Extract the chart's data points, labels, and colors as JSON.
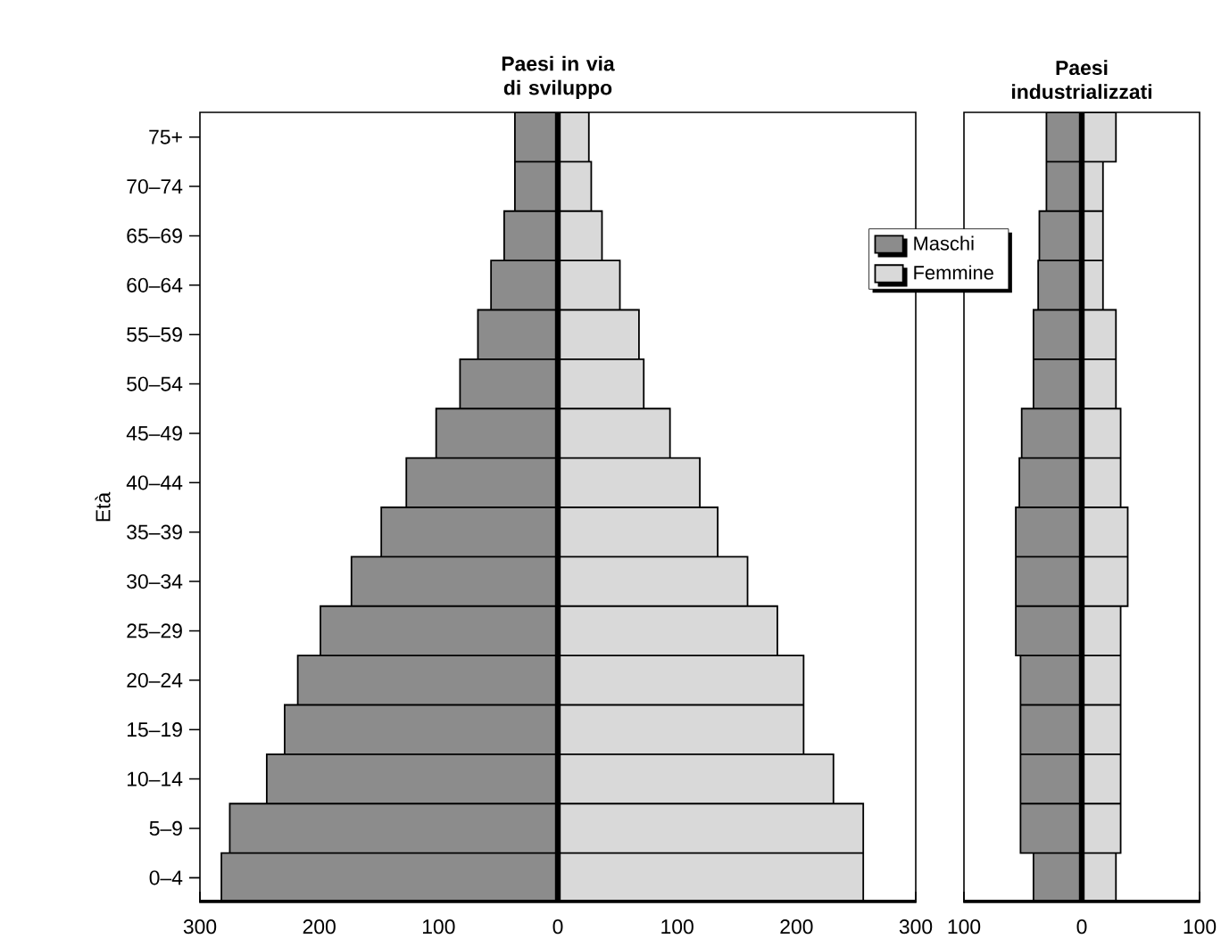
{
  "chart_data": [
    {
      "type": "bar",
      "orientation": "horizontal",
      "stacked": true,
      "title": "Paesi in via di sviluppo",
      "ylabel": "Età",
      "categories": [
        "75+",
        "70–74",
        "65–69",
        "60–64",
        "55–59",
        "50–54",
        "45–49",
        "40–44",
        "35–39",
        "30–34",
        "25–29",
        "20–24",
        "15–19",
        "10–14",
        "5–9",
        "0–4"
      ],
      "series": [
        {
          "name": "Maschi",
          "color": "#8c8c8c",
          "values": [
            -36,
            -36,
            -45,
            -56,
            -67,
            -82,
            -102,
            -127,
            -148,
            -173,
            -199,
            -218,
            -229,
            -244,
            -275,
            -282
          ]
        },
        {
          "name": "Femmine",
          "color": "#d9d9d9",
          "values": [
            26,
            28,
            37,
            52,
            68,
            72,
            94,
            119,
            134,
            159,
            184,
            206,
            206,
            231,
            256,
            256
          ]
        }
      ],
      "xlim": [
        -300,
        300
      ],
      "xticks": [
        {
          "value": -300,
          "label": "300"
        },
        {
          "value": -200,
          "label": "200"
        },
        {
          "value": -100,
          "label": "100"
        },
        0,
        100,
        200,
        300
      ],
      "ref_lines": [
        {
          "axis": "x",
          "value": 0
        }
      ],
      "legend": "top right"
    },
    {
      "type": "bar",
      "orientation": "horizontal",
      "stacked": true,
      "title": "Paesi industrializzati",
      "categories": [
        null,
        null,
        null,
        null,
        null,
        null,
        null,
        null,
        null,
        null,
        null,
        null,
        null,
        null,
        null,
        null
      ],
      "series": [
        {
          "color": "#8c8c8c",
          "values": [
            -30,
            -30,
            -36,
            -37,
            -41,
            -41,
            -51,
            -53,
            -56,
            -56,
            -56,
            -52,
            -52,
            -52,
            -52,
            -41
          ]
        },
        {
          "color": "#d9d9d9",
          "values": [
            29,
            18,
            18,
            18,
            29,
            29,
            33,
            33,
            39,
            39,
            33,
            33,
            33,
            33,
            33,
            29
          ]
        }
      ],
      "xlim": [
        -100,
        100
      ],
      "xticks": [
        {
          "value": -100,
          "label": "100"
        },
        0,
        {
          "value": 100,
          "label": "100"
        }
      ],
      "ref_lines": [
        {
          "axis": "x",
          "value": 0
        }
      ],
      "tick_labels": "x"
    }
  ]
}
